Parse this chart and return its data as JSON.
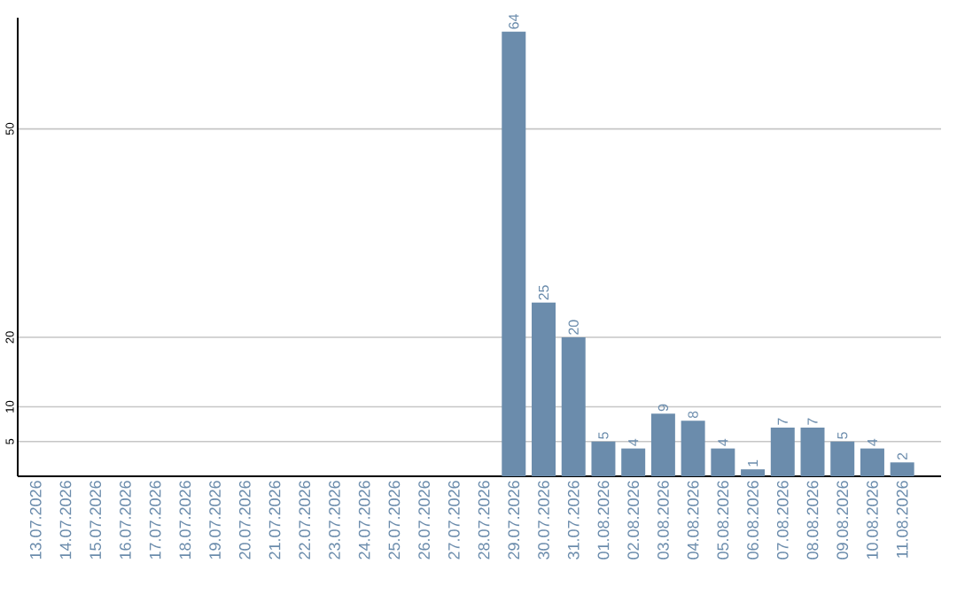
{
  "chart_data": {
    "type": "bar",
    "categories": [
      "13.07.2026",
      "14.07.2026",
      "15.07.2026",
      "16.07.2026",
      "17.07.2026",
      "18.07.2026",
      "19.07.2026",
      "20.07.2026",
      "21.07.2026",
      "22.07.2026",
      "23.07.2026",
      "24.07.2026",
      "25.07.2026",
      "26.07.2026",
      "27.07.2026",
      "28.07.2026",
      "29.07.2026",
      "30.07.2026",
      "31.07.2026",
      "01.08.2026",
      "02.08.2026",
      "03.08.2026",
      "04.08.2026",
      "05.08.2026",
      "06.08.2026",
      "07.08.2026",
      "08.08.2026",
      "09.08.2026",
      "10.08.2026",
      "11.08.2026"
    ],
    "values": [
      0,
      0,
      0,
      0,
      0,
      0,
      0,
      0,
      0,
      0,
      0,
      0,
      0,
      0,
      0,
      0,
      64,
      25,
      20,
      5,
      4,
      9,
      8,
      4,
      1,
      7,
      7,
      5,
      4,
      2
    ],
    "value_labels": [
      null,
      null,
      null,
      null,
      null,
      null,
      null,
      null,
      null,
      null,
      null,
      null,
      null,
      null,
      null,
      null,
      "64",
      "25",
      "20",
      "5",
      "4",
      "9",
      "8",
      "4",
      "1",
      "7",
      "7",
      "5",
      "4",
      "2"
    ],
    "color": "#6b8cac",
    "ylim": [
      0,
      66
    ],
    "yticks": [
      5,
      10,
      20,
      50
    ],
    "grid": "y"
  }
}
